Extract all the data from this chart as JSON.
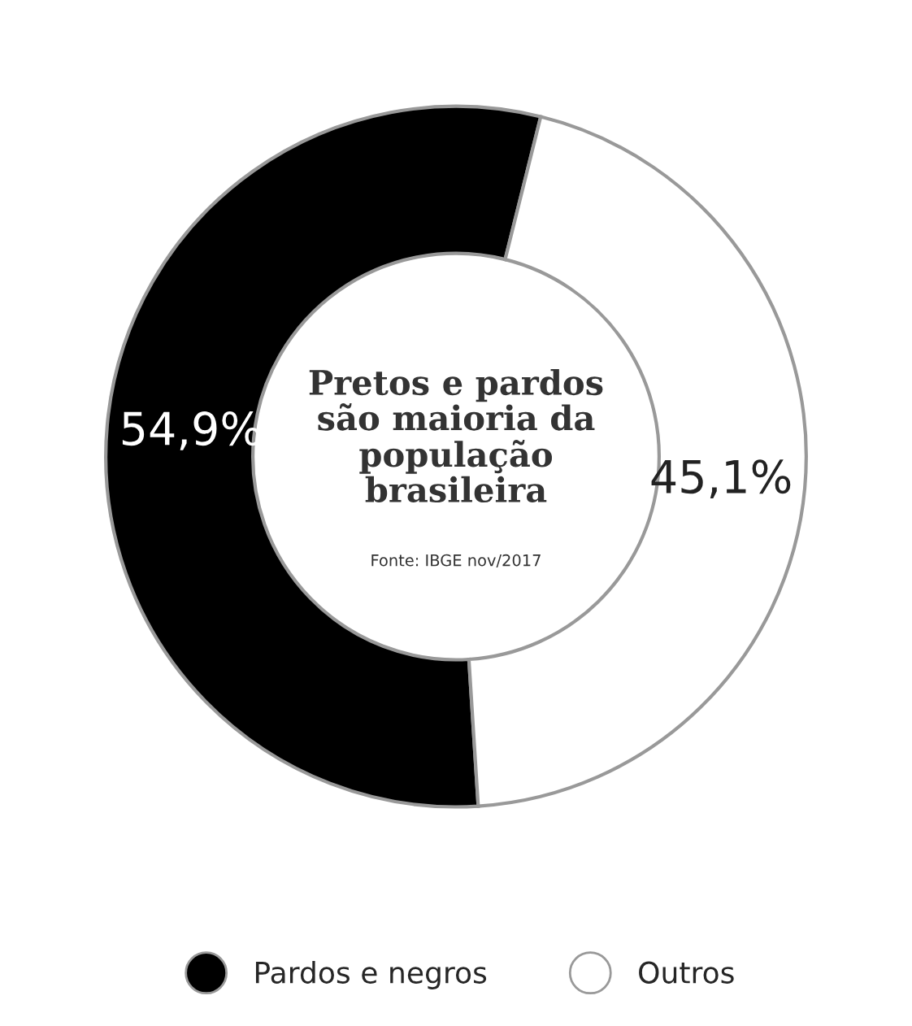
{
  "chart_data": {
    "type": "donut",
    "title": "Pretos e pardos são maioria da população brasileira",
    "categories": [
      "Pardos e negros",
      "Outros"
    ],
    "values": [
      54.9,
      45.1
    ],
    "colors": [
      "#000000",
      "#ffffff"
    ],
    "value_labels": [
      "54,9%",
      "45,1%"
    ],
    "annotations": [
      "Fonte: IBGE nov/2017"
    ],
    "legend": "bottom"
  }
}
